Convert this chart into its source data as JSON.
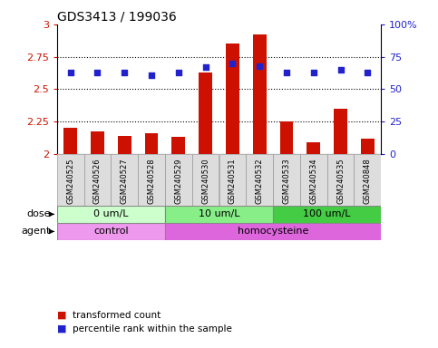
{
  "title": "GDS3413 / 199036",
  "samples": [
    "GSM240525",
    "GSM240526",
    "GSM240527",
    "GSM240528",
    "GSM240529",
    "GSM240530",
    "GSM240531",
    "GSM240532",
    "GSM240533",
    "GSM240534",
    "GSM240535",
    "GSM240848"
  ],
  "transformed_count": [
    2.2,
    2.17,
    2.14,
    2.16,
    2.13,
    2.63,
    2.85,
    2.92,
    2.25,
    2.09,
    2.35,
    2.12
  ],
  "percentile_rank": [
    63,
    63,
    63,
    61,
    63,
    67,
    70,
    68,
    63,
    63,
    65,
    63
  ],
  "bar_color": "#cc1100",
  "dot_color": "#2222cc",
  "ylim_left": [
    2.0,
    3.0
  ],
  "ylim_right": [
    0,
    100
  ],
  "yticks_left": [
    2.0,
    2.25,
    2.5,
    2.75,
    3.0
  ],
  "yticks_right": [
    0,
    25,
    50,
    75,
    100
  ],
  "ytick_labels_right": [
    "0",
    "25",
    "50",
    "75",
    "100%"
  ],
  "ytick_labels_left": [
    "2",
    "2.25",
    "2.5",
    "2.75",
    "3"
  ],
  "hlines": [
    2.25,
    2.5,
    2.75
  ],
  "dose_groups": [
    {
      "label": "0 um/L",
      "start": 0,
      "end": 4,
      "color": "#ccffcc"
    },
    {
      "label": "10 um/L",
      "start": 4,
      "end": 8,
      "color": "#88ee88"
    },
    {
      "label": "100 um/L",
      "start": 8,
      "end": 12,
      "color": "#44cc44"
    }
  ],
  "agent_groups": [
    {
      "label": "control",
      "start": 0,
      "end": 4,
      "color": "#ee99ee"
    },
    {
      "label": "homocysteine",
      "start": 4,
      "end": 12,
      "color": "#dd66dd"
    }
  ],
  "dose_label": "dose",
  "agent_label": "agent",
  "legend_bar_label": "transformed count",
  "legend_dot_label": "percentile rank within the sample",
  "sample_bg": "#dddddd",
  "sample_border": "#999999"
}
